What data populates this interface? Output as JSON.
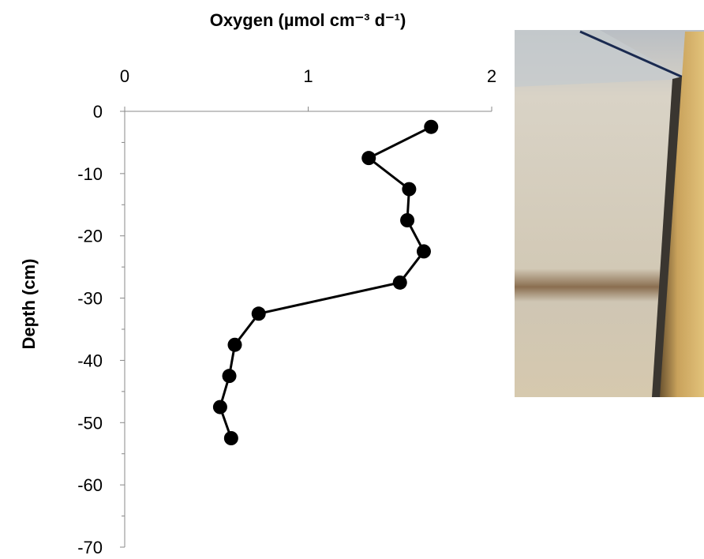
{
  "chart_data": {
    "type": "line",
    "title": "Oxygen (µmol cm⁻³ d⁻¹)",
    "y_label": "Depth (cm)",
    "x": [
      1.67,
      1.33,
      1.55,
      1.54,
      1.63,
      1.5,
      0.73,
      0.6,
      0.57,
      0.52,
      0.58
    ],
    "y": [
      -2.5,
      -7.5,
      -12.5,
      -17.5,
      -22.5,
      -27.5,
      -32.5,
      -37.5,
      -42.5,
      -47.5,
      -52.5
    ],
    "color": "#000000",
    "xlim": [
      0,
      2
    ],
    "xticks": [
      0,
      1,
      2
    ],
    "ylim": [
      -70,
      0
    ],
    "yticks": [
      0,
      -10,
      -20,
      -30,
      -40,
      -50,
      -60,
      -70
    ],
    "yminor_ticks": [
      -5,
      -15,
      -25,
      -35,
      -45,
      -55,
      -65
    ]
  }
}
